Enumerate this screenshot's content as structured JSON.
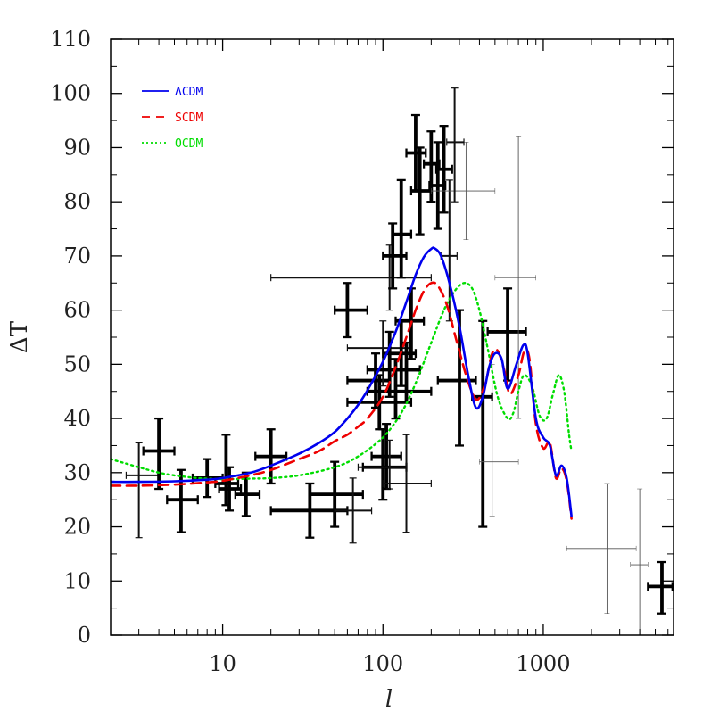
{
  "chart_data": {
    "type": "line",
    "title": "",
    "xlabel": "l",
    "ylabel": "ΔT",
    "x_scale": "log",
    "xlim": [
      2,
      6500
    ],
    "ylim": [
      0,
      110
    ],
    "x_ticks": [
      10,
      100,
      1000
    ],
    "x_tick_labels": [
      "10",
      "100",
      "1000"
    ],
    "y_ticks": [
      0,
      10,
      20,
      30,
      40,
      50,
      60,
      70,
      80,
      90,
      100,
      110
    ],
    "y_tick_labels": [
      "0",
      "10",
      "20",
      "30",
      "40",
      "50",
      "60",
      "70",
      "80",
      "90",
      "100",
      "110"
    ],
    "grid": false,
    "legend_position": "top-left",
    "series": [
      {
        "name": "ΛCDM",
        "color": "#0000ee",
        "style": "solid",
        "x": [
          2,
          3,
          5,
          8,
          10,
          15,
          20,
          30,
          40,
          50,
          60,
          70,
          80,
          100,
          120,
          140,
          160,
          180,
          200,
          210,
          230,
          260,
          300,
          340,
          380,
          420,
          460,
          500,
          550,
          600,
          680,
          750,
          800,
          900,
          1000,
          1100,
          1200,
          1300,
          1400,
          1500
        ],
        "y": [
          28.3,
          28.3,
          28.4,
          28.7,
          29,
          30,
          31.3,
          33.5,
          35.5,
          37.5,
          40,
          42.5,
          45.2,
          50.5,
          56,
          61.5,
          66.5,
          69.8,
          71.3,
          71.4,
          70,
          65,
          57,
          48,
          42,
          44,
          49.5,
          52,
          51,
          45.5,
          50,
          53.5,
          52,
          40,
          36.5,
          35,
          29.5,
          31.3,
          29,
          22
        ]
      },
      {
        "name": "SCDM",
        "color": "#ee0000",
        "style": "dashed",
        "x": [
          2,
          3,
          5,
          8,
          10,
          15,
          20,
          30,
          40,
          50,
          60,
          70,
          80,
          100,
          120,
          140,
          160,
          180,
          200,
          220,
          250,
          290,
          330,
          370,
          400,
          440,
          480,
          520,
          570,
          620,
          700,
          760,
          820,
          900,
          1000,
          1100,
          1200,
          1300,
          1400,
          1500
        ],
        "y": [
          27.6,
          27.6,
          27.8,
          28.2,
          28.5,
          29.5,
          30.5,
          32.5,
          34,
          35.8,
          37,
          38.5,
          40,
          44,
          49.5,
          55,
          60,
          63.5,
          65,
          64.5,
          61,
          54,
          48,
          44,
          43.8,
          47,
          52,
          52.5,
          49,
          44.5,
          48,
          52.3,
          51,
          39,
          34.5,
          35.5,
          29,
          30.8,
          28.5,
          21.5
        ]
      },
      {
        "name": "OCDM",
        "color": "#00dd00",
        "style": "dotted",
        "x": [
          2,
          3,
          4,
          5,
          7,
          10,
          15,
          20,
          30,
          50,
          70,
          100,
          130,
          160,
          200,
          240,
          280,
          320,
          360,
          400,
          450,
          520,
          600,
          650,
          700,
          760,
          850,
          950,
          1050,
          1150,
          1250,
          1350,
          1450,
          1500
        ],
        "y": [
          32.5,
          31,
          30,
          29.5,
          29,
          28.8,
          28.9,
          29,
          29.5,
          31,
          33,
          36.5,
          41,
          46.5,
          54,
          60,
          63.5,
          65,
          64,
          60,
          53,
          44,
          40,
          41,
          45,
          48,
          46,
          40.5,
          40,
          44.5,
          48,
          45,
          37,
          34
        ]
      }
    ],
    "measurements": [
      {
        "x": 3,
        "y": 29.5,
        "xlo": 2.5,
        "xhi": 4,
        "ylo": 18,
        "yhi": 35.5,
        "w": "medium"
      },
      {
        "x": 4,
        "y": 34,
        "xlo": 3.2,
        "xhi": 5,
        "ylo": 27,
        "yhi": 40,
        "w": "heavy"
      },
      {
        "x": 5.5,
        "y": 25,
        "xlo": 4.5,
        "xhi": 7,
        "ylo": 19,
        "yhi": 30.5,
        "w": "heavy"
      },
      {
        "x": 8,
        "y": 29,
        "xlo": 6.5,
        "xhi": 10,
        "ylo": 25.5,
        "yhi": 32.5,
        "w": "heavy"
      },
      {
        "x": 10.5,
        "y": 28,
        "xlo": 9,
        "xhi": 12.5,
        "ylo": 24,
        "yhi": 37,
        "w": "heavy"
      },
      {
        "x": 11,
        "y": 27,
        "xlo": 9.5,
        "xhi": 13,
        "ylo": 23,
        "yhi": 31,
        "w": "heavy"
      },
      {
        "x": 14,
        "y": 26,
        "xlo": 12,
        "xhi": 17,
        "ylo": 22,
        "yhi": 30,
        "w": "heavy"
      },
      {
        "x": 20,
        "y": 33,
        "xlo": 16,
        "xhi": 25,
        "ylo": 28,
        "yhi": 38,
        "w": "heavy"
      },
      {
        "x": 35,
        "y": 23,
        "xlo": 20,
        "xhi": 60,
        "ylo": 18,
        "yhi": 28,
        "w": "heavy"
      },
      {
        "x": 50,
        "y": 26,
        "xlo": 35,
        "xhi": 75,
        "ylo": 20,
        "yhi": 32,
        "w": "heavy"
      },
      {
        "x": 65,
        "y": 23,
        "xlo": 50,
        "xhi": 85,
        "ylo": 17,
        "yhi": 29,
        "w": "medium"
      },
      {
        "x": 100,
        "y": 31,
        "xlo": 75,
        "xhi": 140,
        "ylo": 25,
        "yhi": 38,
        "w": "heavy"
      },
      {
        "x": 105,
        "y": 33,
        "xlo": 85,
        "xhi": 130,
        "ylo": 27,
        "yhi": 39,
        "w": "heavy"
      },
      {
        "x": 110,
        "y": 31,
        "xlo": 70,
        "xhi": 140,
        "ylo": 27,
        "yhi": 36,
        "w": "medium"
      },
      {
        "x": 140,
        "y": 28,
        "xlo": 100,
        "xhi": 200,
        "ylo": 19,
        "yhi": 37,
        "w": "medium"
      },
      {
        "x": 60,
        "y": 60,
        "xlo": 50,
        "xhi": 80,
        "ylo": 55,
        "yhi": 65,
        "w": "heavy"
      },
      {
        "x": 110,
        "y": 66,
        "xlo": 20,
        "xhi": 200,
        "ylo": 60,
        "yhi": 72,
        "w": "medium"
      },
      {
        "x": 115,
        "y": 70,
        "xlo": 100,
        "xhi": 140,
        "ylo": 64,
        "yhi": 76,
        "w": "heavy"
      },
      {
        "x": 130,
        "y": 74,
        "xlo": 115,
        "xhi": 150,
        "ylo": 66,
        "yhi": 84,
        "w": "heavy"
      },
      {
        "x": 90,
        "y": 47,
        "xlo": 60,
        "xhi": 110,
        "ylo": 42,
        "yhi": 52,
        "w": "heavy"
      },
      {
        "x": 95,
        "y": 43,
        "xlo": 60,
        "xhi": 150,
        "ylo": 38,
        "yhi": 48,
        "w": "heavy"
      },
      {
        "x": 100,
        "y": 53,
        "xlo": 60,
        "xhi": 150,
        "ylo": 46,
        "yhi": 58,
        "w": "medium"
      },
      {
        "x": 110,
        "y": 49,
        "xlo": 80,
        "xhi": 170,
        "ylo": 44,
        "yhi": 56,
        "w": "heavy"
      },
      {
        "x": 120,
        "y": 45,
        "xlo": 80,
        "xhi": 200,
        "ylo": 40,
        "yhi": 51,
        "w": "heavy"
      },
      {
        "x": 130,
        "y": 52,
        "xlo": 100,
        "xhi": 160,
        "ylo": 46,
        "yhi": 58,
        "w": "heavy"
      },
      {
        "x": 150,
        "y": 58,
        "xlo": 120,
        "xhi": 180,
        "ylo": 51,
        "yhi": 64,
        "w": "heavy"
      },
      {
        "x": 140,
        "y": 49,
        "xlo": 110,
        "xhi": 170,
        "ylo": 43,
        "yhi": 54,
        "w": "heavy"
      },
      {
        "x": 160,
        "y": 89,
        "xlo": 140,
        "xhi": 185,
        "ylo": 82,
        "yhi": 96,
        "w": "heavy"
      },
      {
        "x": 170,
        "y": 82,
        "xlo": 150,
        "xhi": 200,
        "ylo": 74,
        "yhi": 90,
        "w": "heavy"
      },
      {
        "x": 200,
        "y": 87,
        "xlo": 180,
        "xhi": 225,
        "ylo": 80,
        "yhi": 93,
        "w": "heavy"
      },
      {
        "x": 220,
        "y": 83,
        "xlo": 195,
        "xhi": 245,
        "ylo": 75,
        "yhi": 91,
        "w": "heavy"
      },
      {
        "x": 240,
        "y": 86,
        "xlo": 215,
        "xhi": 270,
        "ylo": 78,
        "yhi": 94,
        "w": "heavy"
      },
      {
        "x": 260,
        "y": 70,
        "xlo": 230,
        "xhi": 290,
        "ylo": 58,
        "yhi": 84,
        "w": "medium"
      },
      {
        "x": 330,
        "y": 82,
        "xlo": 200,
        "xhi": 500,
        "ylo": 73,
        "yhi": 91,
        "w": "light"
      },
      {
        "x": 280,
        "y": 91,
        "xlo": 250,
        "xhi": 320,
        "ylo": 80,
        "yhi": 101,
        "w": "medium"
      },
      {
        "x": 300,
        "y": 47,
        "xlo": 220,
        "xhi": 380,
        "ylo": 35,
        "yhi": 60,
        "w": "heavy"
      },
      {
        "x": 420,
        "y": 44,
        "xlo": 360,
        "xhi": 480,
        "ylo": 20,
        "yhi": 58,
        "w": "heavy"
      },
      {
        "x": 600,
        "y": 56,
        "xlo": 450,
        "xhi": 780,
        "ylo": 47,
        "yhi": 64,
        "w": "heavy"
      },
      {
        "x": 480,
        "y": 32,
        "xlo": 400,
        "xhi": 700,
        "ylo": 22,
        "yhi": 50,
        "w": "light"
      },
      {
        "x": 700,
        "y": 66,
        "xlo": 500,
        "xhi": 900,
        "ylo": 40,
        "yhi": 92,
        "w": "light"
      },
      {
        "x": 2500,
        "y": 16,
        "xlo": 1400,
        "xhi": 3800,
        "ylo": 4,
        "yhi": 28,
        "w": "light"
      },
      {
        "x": 4000,
        "y": 13,
        "xlo": 3500,
        "xhi": 4500,
        "ylo": 0,
        "yhi": 27,
        "w": "light"
      },
      {
        "x": 5500,
        "y": 9,
        "xlo": 4500,
        "xhi": 6400,
        "ylo": 4,
        "yhi": 13.5,
        "w": "heavy"
      }
    ]
  }
}
